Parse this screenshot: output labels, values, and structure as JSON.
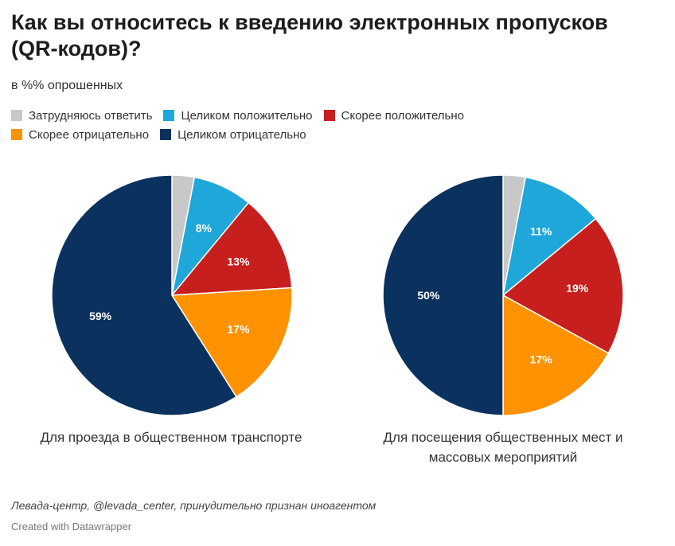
{
  "title": "Как вы относитесь к введению электронных пропусков (QR-кодов)?",
  "subtitle": "в %% опрошенных",
  "legend": [
    {
      "label": "Затрудняюсь ответить",
      "color": "#c8c8c8"
    },
    {
      "label": "Целиком положительно",
      "color": "#1ea7d8"
    },
    {
      "label": "Скорее положительно",
      "color": "#c71e1e"
    },
    {
      "label": "Скорее отрицательно",
      "color": "#ff9200"
    },
    {
      "label": "Целиком отрицательно",
      "color": "#0b325f"
    }
  ],
  "chart_data": [
    {
      "type": "pie",
      "caption": "Для проезда в общественном транспорте",
      "categories": [
        "Затрудняюсь ответить",
        "Целиком положительно",
        "Скорее положительно",
        "Скорее отрицательно",
        "Целиком отрицательно"
      ],
      "values": [
        3,
        8,
        13,
        17,
        59
      ],
      "data_labels": [
        "",
        "8%",
        "13%",
        "17%",
        "59%"
      ]
    },
    {
      "type": "pie",
      "caption": "Для посещения общественных мест и массовых мероприятий",
      "categories": [
        "Затрудняюсь ответить",
        "Целиком положительно",
        "Скорее положительно",
        "Скорее отрицательно",
        "Целиком отрицательно"
      ],
      "values": [
        3,
        11,
        19,
        17,
        50
      ],
      "data_labels": [
        "",
        "11%",
        "19%",
        "17%",
        "50%"
      ]
    }
  ],
  "source": "Левада-центр, @levada_center, принудительно признан иноагентом",
  "credit": "Created with Datawrapper"
}
